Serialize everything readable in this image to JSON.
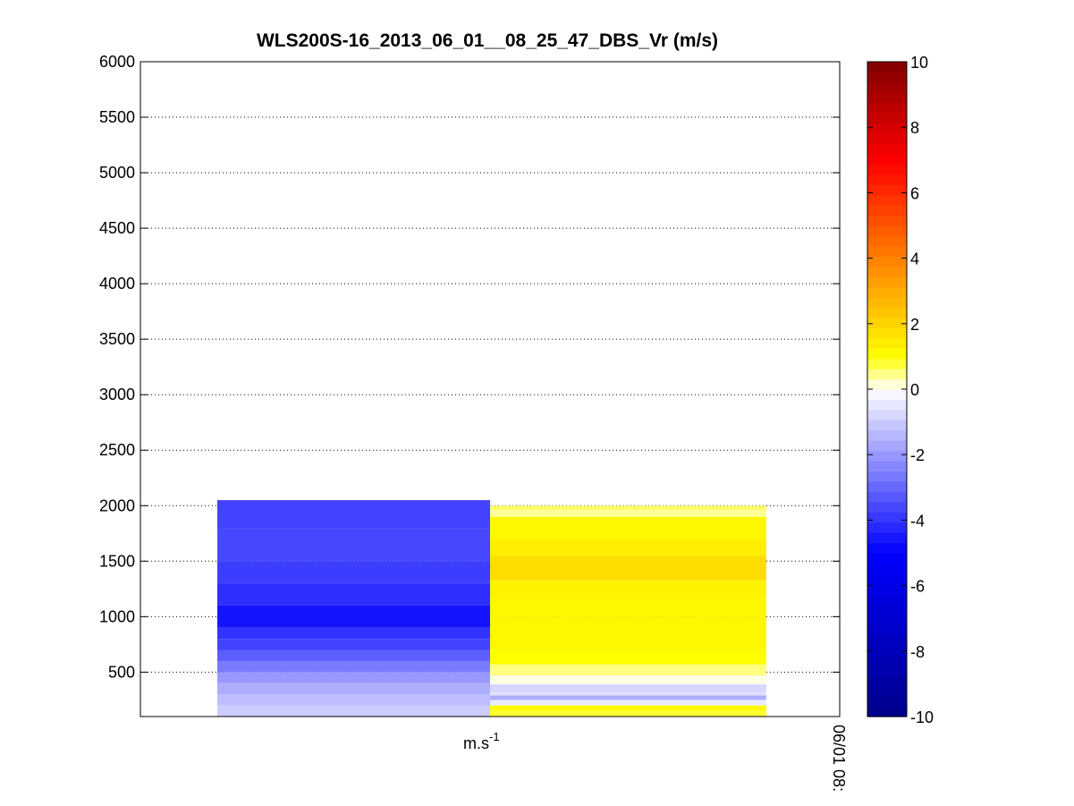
{
  "chart_data": {
    "type": "heatmap",
    "title": "WLS200S-16_2013_06_01__08_25_47_DBS_Vr (m/s)",
    "y_ticks": [
      500,
      1000,
      1500,
      2000,
      2500,
      3000,
      3500,
      4000,
      4500,
      5000,
      5500,
      6000
    ],
    "ylim": [
      100,
      6000
    ],
    "x_label_base": "m.s",
    "x_label_exp": "-1",
    "x_tick_label": "06/01 08:",
    "grid": "horizontal dotted",
    "colorbar": {
      "range": [
        -10,
        10
      ],
      "ticks": [
        -10,
        -8,
        -6,
        -4,
        -2,
        0,
        2,
        4,
        6,
        8,
        10
      ],
      "colormap": [
        "#00008b",
        "#0000ff",
        "#ffffff",
        "#ffff00",
        "#ff8000",
        "#ff0000",
        "#800000"
      ]
    },
    "columns": [
      {
        "name": "column-1",
        "x_range": [
          0.11,
          0.5
        ],
        "bins": [
          {
            "y0": 100,
            "y1": 200,
            "v": -1.0
          },
          {
            "y0": 200,
            "y1": 300,
            "v": -1.3
          },
          {
            "y0": 300,
            "y1": 400,
            "v": -1.6
          },
          {
            "y0": 400,
            "y1": 500,
            "v": -2.0
          },
          {
            "y0": 500,
            "y1": 600,
            "v": -2.6
          },
          {
            "y0": 600,
            "y1": 700,
            "v": -3.2
          },
          {
            "y0": 700,
            "y1": 800,
            "v": -3.7
          },
          {
            "y0": 800,
            "y1": 900,
            "v": -4.0
          },
          {
            "y0": 900,
            "y1": 1100,
            "v": -4.6
          },
          {
            "y0": 1100,
            "y1": 1300,
            "v": -4.1
          },
          {
            "y0": 1300,
            "y1": 1500,
            "v": -3.8
          },
          {
            "y0": 1500,
            "y1": 1800,
            "v": -3.6
          },
          {
            "y0": 1800,
            "y1": 2050,
            "v": -3.7
          }
        ]
      },
      {
        "name": "column-2",
        "x_range": [
          0.5,
          0.895
        ],
        "bins": [
          {
            "y0": 100,
            "y1": 150,
            "v": 0.8
          },
          {
            "y0": 150,
            "y1": 200,
            "v": 1.1
          },
          {
            "y0": 200,
            "y1": 250,
            "v": -0.4
          },
          {
            "y0": 250,
            "y1": 290,
            "v": -1.6
          },
          {
            "y0": 290,
            "y1": 320,
            "v": -0.6
          },
          {
            "y0": 320,
            "y1": 390,
            "v": -0.8
          },
          {
            "y0": 390,
            "y1": 470,
            "v": 0.1
          },
          {
            "y0": 470,
            "y1": 570,
            "v": 0.5
          },
          {
            "y0": 570,
            "y1": 700,
            "v": 1.0
          },
          {
            "y0": 700,
            "y1": 1000,
            "v": 1.2
          },
          {
            "y0": 1000,
            "y1": 1200,
            "v": 1.2
          },
          {
            "y0": 1200,
            "y1": 1330,
            "v": 1.3
          },
          {
            "y0": 1330,
            "y1": 1550,
            "v": 1.8
          },
          {
            "y0": 1550,
            "y1": 1700,
            "v": 1.4
          },
          {
            "y0": 1700,
            "y1": 1900,
            "v": 1.2
          },
          {
            "y0": 1900,
            "y1": 1960,
            "v": 0.4
          },
          {
            "y0": 1960,
            "y1": 2000,
            "v": 0.6
          }
        ]
      }
    ]
  }
}
